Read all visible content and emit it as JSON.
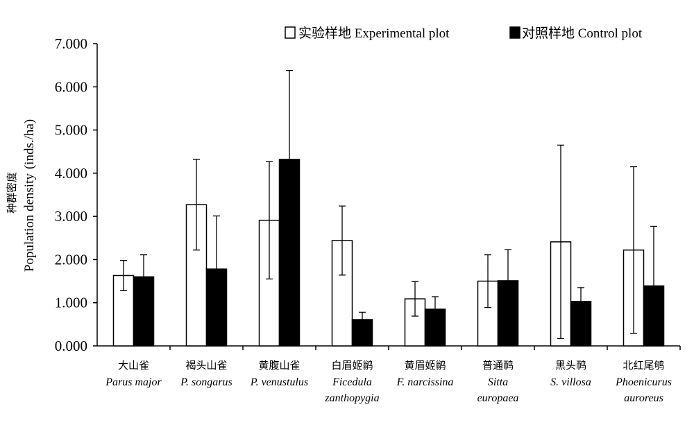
{
  "chart_data": {
    "type": "bar",
    "ylabel_cn": "种群密度",
    "ylabel": "Population density",
    "ylabel_unit": "(inds./ha)",
    "ylim": [
      0,
      7
    ],
    "y_ticks": [
      "0.000",
      "1.000",
      "2.000",
      "3.000",
      "4.000",
      "5.000",
      "6.000",
      "7.000"
    ],
    "categories": [
      {
        "cn": "大山雀",
        "latin": [
          "Parus major"
        ]
      },
      {
        "cn": "褐头山雀",
        "latin": [
          "P. songarus"
        ]
      },
      {
        "cn": "黄腹山雀",
        "latin": [
          "P. venustulus"
        ]
      },
      {
        "cn": "白眉姬鹟",
        "latin": [
          "Ficedula",
          "zanthopygia"
        ]
      },
      {
        "cn": "黄眉姬鹟",
        "latin": [
          "F. narcissina"
        ]
      },
      {
        "cn": "普通䴓",
        "latin": [
          "Sitta",
          "europaea"
        ]
      },
      {
        "cn": "黑头䴓",
        "latin": [
          "S. villosa"
        ]
      },
      {
        "cn": "北红尾鸲",
        "latin": [
          "Phoenicurus",
          "auroreus"
        ]
      }
    ],
    "series": [
      {
        "name": "实验样地 Experimental plot",
        "color": "#ffffff",
        "values": [
          1.63,
          3.27,
          2.91,
          2.44,
          1.09,
          1.5,
          2.41,
          2.22
        ],
        "errors": [
          0.35,
          1.05,
          1.36,
          0.8,
          0.4,
          0.61,
          2.24,
          1.93
        ]
      },
      {
        "name": "对照样地 Control plot",
        "color": "#000000",
        "values": [
          1.6,
          1.78,
          4.32,
          0.61,
          0.85,
          1.51,
          1.03,
          1.39
        ],
        "errors": [
          0.51,
          1.23,
          2.06,
          0.17,
          0.29,
          0.72,
          0.32,
          1.38
        ]
      }
    ],
    "grid": false,
    "legend_position": "top-right"
  }
}
